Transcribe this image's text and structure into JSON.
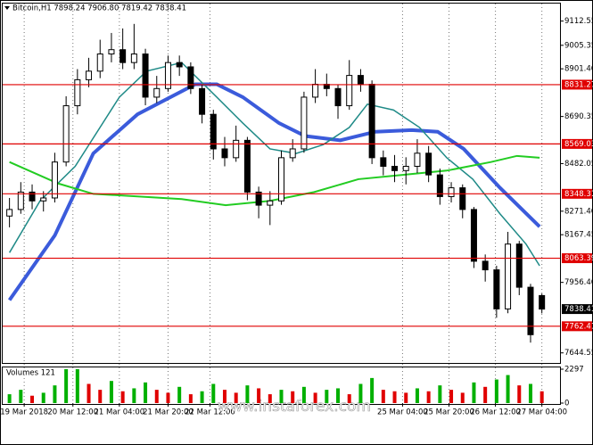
{
  "chart_data": {
    "type": "candlestick",
    "title": "Bitcoin,H1  7898.24 7906.80 7819.42 7838.41",
    "ohlc": [
      [
        8250,
        8330,
        8200,
        8279
      ],
      [
        8279,
        8400,
        8260,
        8356
      ],
      [
        8356,
        8390,
        8280,
        8317
      ],
      [
        8317,
        8360,
        8270,
        8330
      ],
      [
        8330,
        8530,
        8310,
        8489
      ],
      [
        8489,
        8780,
        8470,
        8738
      ],
      [
        8738,
        8900,
        8700,
        8853
      ],
      [
        8853,
        8950,
        8820,
        8891
      ],
      [
        8891,
        9030,
        8860,
        8967
      ],
      [
        8967,
        9060,
        8930,
        8986
      ],
      [
        8986,
        9080,
        8900,
        8929
      ],
      [
        8929,
        9100,
        8900,
        8967
      ],
      [
        8967,
        8990,
        8740,
        8776
      ],
      [
        8776,
        8870,
        8750,
        8814
      ],
      [
        8814,
        8960,
        8800,
        8929
      ],
      [
        8929,
        8960,
        8870,
        8910
      ],
      [
        8910,
        8930,
        8790,
        8814
      ],
      [
        8814,
        8830,
        8660,
        8700
      ],
      [
        8700,
        8720,
        8500,
        8547
      ],
      [
        8547,
        8600,
        8470,
        8508
      ],
      [
        8508,
        8650,
        8490,
        8585
      ],
      [
        8585,
        8600,
        8320,
        8356
      ],
      [
        8356,
        8380,
        8240,
        8298
      ],
      [
        8298,
        8360,
        8210,
        8317
      ],
      [
        8317,
        8540,
        8300,
        8508
      ],
      [
        8508,
        8590,
        8490,
        8547
      ],
      [
        8547,
        8800,
        8530,
        8776
      ],
      [
        8776,
        8900,
        8750,
        8833
      ],
      [
        8833,
        8880,
        8780,
        8814
      ],
      [
        8814,
        8830,
        8680,
        8738
      ],
      [
        8738,
        8940,
        8720,
        8872
      ],
      [
        8872,
        8900,
        8800,
        8833
      ],
      [
        8833,
        8850,
        8480,
        8508
      ],
      [
        8508,
        8540,
        8430,
        8470
      ],
      [
        8470,
        8520,
        8400,
        8451
      ],
      [
        8451,
        8510,
        8390,
        8470
      ],
      [
        8470,
        8590,
        8440,
        8528
      ],
      [
        8528,
        8560,
        8400,
        8432
      ],
      [
        8432,
        8460,
        8300,
        8336
      ],
      [
        8336,
        8400,
        8310,
        8375
      ],
      [
        8375,
        8390,
        8240,
        8279
      ],
      [
        8279,
        8290,
        8020,
        8050
      ],
      [
        8050,
        8080,
        7960,
        8012
      ],
      [
        8012,
        8030,
        7800,
        7839
      ],
      [
        7839,
        8180,
        7820,
        8126
      ],
      [
        8126,
        8140,
        7900,
        7935
      ],
      [
        7935,
        7950,
        7690,
        7725
      ],
      [
        7898.24,
        7906.8,
        7819.42,
        7838.41
      ]
    ],
    "volumes": [
      600,
      900,
      500,
      700,
      1200,
      2297,
      2297,
      1300,
      900,
      1500,
      800,
      1000,
      1400,
      900,
      700,
      1100,
      600,
      800,
      1300,
      900,
      700,
      1200,
      1000,
      600,
      900,
      800,
      1100,
      700,
      900,
      1000,
      600,
      1300,
      1700,
      900,
      800,
      700,
      1000,
      800,
      1200,
      900,
      700,
      1400,
      1100,
      1600,
      1900,
      1200,
      1300,
      800
    ],
    "ma": [
      {
        "color": "#3b5bdb",
        "width": 4,
        "x": [
          0,
          4,
          7.4,
          11.3,
          16.4,
          18.3,
          20.6,
          23.8,
          26.1,
          29.2,
          32.3,
          35.5,
          37.8,
          40.1,
          43.3,
          46.8
        ],
        "values": [
          7878,
          8164,
          8527,
          8700,
          8833,
          8833,
          8776,
          8661,
          8604,
          8585,
          8623,
          8630,
          8623,
          8547,
          8375,
          8203
        ]
      },
      {
        "color": "#1f8a87",
        "width": 1.5,
        "x": [
          0,
          2.7,
          5.8,
          9.7,
          12.1,
          15.2,
          18.3,
          20.6,
          23,
          25.3,
          27.7,
          30,
          31.6,
          33.9,
          36.2,
          38.6,
          40.9,
          43.3,
          45.6,
          46.8
        ],
        "values": [
          8088,
          8317,
          8470,
          8776,
          8891,
          8929,
          8776,
          8661,
          8547,
          8527,
          8566,
          8642,
          8745,
          8719,
          8642,
          8508,
          8413,
          8260,
          8126,
          8030
        ]
      },
      {
        "color": "#22cc22",
        "width": 2,
        "x": [
          0,
          4.3,
          7.4,
          11.3,
          15.2,
          19.1,
          23,
          26.9,
          30.8,
          34.7,
          38.6,
          42.5,
          44.8,
          46.8
        ],
        "values": [
          8489,
          8394,
          8348,
          8337,
          8325,
          8298,
          8317,
          8356,
          8413,
          8432,
          8451,
          8489,
          8516,
          8508
        ]
      }
    ],
    "levels": [
      8831.27,
      8569.03,
      8348.31,
      8063.39,
      7762.41
    ],
    "level_color": "#e00000",
    "current_price": 7838.41,
    "ylim": [
      7600,
      9190
    ],
    "yticks": [
      9112.55,
      9005.35,
      {
        "value": 8901.4,
        "label": "8901.40"
      },
      8690.35,
      8482.05,
      {
        "value": 8271.4,
        "label": "8271.40"
      },
      8167.45,
      {
        "value": 7956.4,
        "label": "7956.40"
      },
      7644.55
    ],
    "volume_label": "Volumes 121",
    "vlim": [
      0,
      2297
    ],
    "vticks": [
      2297,
      0
    ],
    "xlim": [
      -0.6,
      48.6
    ],
    "xticks": [
      {
        "value": 1.3,
        "label": "19 Mar 2018"
      },
      {
        "value": 5.6,
        "label": "20 Mar 12:00"
      },
      {
        "value": 9.7,
        "label": "21 Mar 04:00"
      },
      {
        "value": 14,
        "label": "21 Mar 20:00"
      },
      {
        "value": 17.7,
        "label": "22 Mar 12:00"
      },
      {
        "value": 34.7,
        "label": "25 Mar 04:00"
      },
      {
        "value": 38.8,
        "label": "25 Mar 20:00"
      },
      {
        "value": 42.9,
        "label": "26 Mar 12:00"
      },
      {
        "value": 47,
        "label": "27 Mar 04:00"
      }
    ],
    "watermark": "www.instaforex.com"
  }
}
